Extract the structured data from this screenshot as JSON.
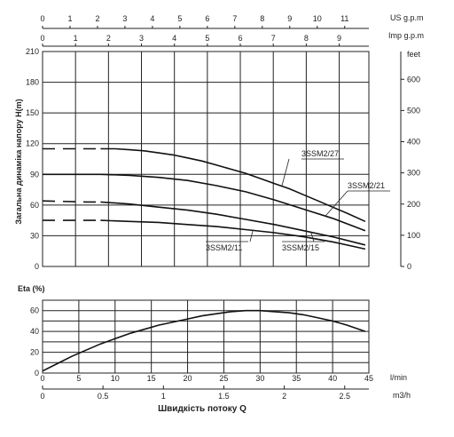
{
  "chart_data": [
    {
      "type": "line",
      "ylabel": "Загальна динаміка напору H(m)",
      "ylim": [
        0,
        210
      ],
      "yticks": [
        0,
        30,
        60,
        90,
        120,
        150,
        180,
        210
      ],
      "xlim": [
        0,
        45
      ],
      "x_us_label": "US g.p.m",
      "x_us_ticks": [
        "0",
        "1",
        "2",
        "3",
        "4",
        "5",
        "6",
        "7",
        "8",
        "9",
        "10",
        "11"
      ],
      "x_us_per_lmin": 0.264,
      "x_imp_label": "Imp g.p.m",
      "x_imp_ticks": [
        "0",
        "1",
        "2",
        "3",
        "4",
        "5",
        "6",
        "7",
        "8",
        "9"
      ],
      "x_imp_per_lmin": 0.22,
      "y2_label": "feet",
      "y2_ticks": [
        "0",
        "100",
        "200",
        "300",
        "400",
        "500",
        "600"
      ],
      "y2_per_m": 3.281,
      "grid": true,
      "series": [
        {
          "name": "3SSM2/27",
          "x": [
            0,
            2,
            4,
            6,
            8,
            10,
            12,
            14,
            16,
            18,
            20,
            22,
            24,
            26,
            28,
            30,
            32,
            34,
            36,
            38,
            40,
            42,
            44.5
          ],
          "y": [
            115,
            115,
            115,
            115,
            115,
            115,
            114,
            113,
            111,
            109,
            106,
            103,
            99,
            95,
            91,
            86,
            81,
            76,
            70,
            64,
            58,
            52,
            44
          ],
          "dashed_until": 8
        },
        {
          "name": "3SSM2/21",
          "x": [
            0,
            8,
            12,
            16,
            20,
            24,
            28,
            32,
            36,
            40,
            44.5
          ],
          "y": [
            90,
            90,
            89,
            87,
            84,
            79,
            73,
            65,
            56,
            47,
            35
          ],
          "dashed_until": 0
        },
        {
          "name": "3SSM2/15",
          "x": [
            0,
            6,
            8,
            12,
            16,
            20,
            24,
            28,
            32,
            36,
            40,
            44.5
          ],
          "y": [
            64,
            63,
            63,
            61,
            58,
            55,
            51,
            46,
            41,
            35,
            29,
            21
          ],
          "dashed_until": 8
        },
        {
          "name": "3SSM2/11",
          "x": [
            0,
            6,
            8,
            12,
            16,
            20,
            24,
            28,
            32,
            36,
            40,
            44.5
          ],
          "y": [
            45,
            45,
            45,
            44,
            43,
            41,
            39,
            36,
            33,
            29,
            24,
            17
          ],
          "dashed_until": 8
        }
      ],
      "annotations": [
        {
          "text": "3SSM2/27",
          "series": "3SSM2/27",
          "at_x": 33
        },
        {
          "text": "3SSM2/21",
          "series": "3SSM2/21",
          "at_x": 39
        },
        {
          "text": "3SSM2/11",
          "series": "3SSM2/11",
          "at_x": 29
        },
        {
          "text": "3SSM2/15",
          "series": "3SSM2/15",
          "at_x": 37
        }
      ]
    },
    {
      "type": "line",
      "ylabel": "Eta (%)",
      "ylim": [
        0,
        70
      ],
      "yticks": [
        0,
        20,
        40,
        60
      ],
      "xlim": [
        0,
        45
      ],
      "xlabel": "Швидкість потоку Q",
      "x_lmin_label": "l/min",
      "x_lmin_ticks": [
        "0",
        "5",
        "10",
        "15",
        "20",
        "25",
        "30",
        "35",
        "40",
        "45"
      ],
      "x_m3h_label": "m3/h",
      "x_m3h_ticks": [
        "0",
        "0.5",
        "1",
        "1.5",
        "2",
        "2.5"
      ],
      "x_m3h_per_lmin": 0.06,
      "grid": true,
      "series": [
        {
          "name": "Eta",
          "x": [
            0,
            2,
            4,
            6,
            8,
            10,
            12,
            14,
            16,
            18,
            20,
            22,
            24,
            26,
            28,
            30,
            32,
            34,
            36,
            38,
            40,
            42,
            44.5
          ],
          "y": [
            2,
            9,
            16,
            22,
            28,
            33,
            38,
            42,
            46,
            49,
            52,
            55,
            57,
            59,
            60,
            60,
            59,
            58,
            56,
            53,
            50,
            46,
            40
          ]
        }
      ]
    }
  ]
}
